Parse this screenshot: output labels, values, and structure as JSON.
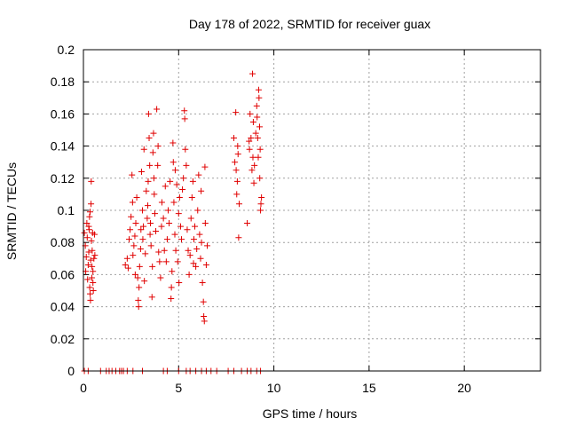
{
  "chart_data": {
    "type": "scatter",
    "title": "Day 178 of 2022, SRMTID for receiver guax",
    "xlabel": "GPS time / hours",
    "ylabel": "SRMTID / TECUs",
    "xlim": [
      0,
      24
    ],
    "ylim": [
      0,
      0.2
    ],
    "xticks": [
      0,
      5,
      10,
      15,
      20
    ],
    "xtick_labels": [
      "0",
      "5",
      "10",
      "15",
      "20"
    ],
    "yticks": [
      0,
      0.02,
      0.04,
      0.06,
      0.08,
      0.1,
      0.12,
      0.14,
      0.16,
      0.18,
      0.2
    ],
    "ytick_labels": [
      "0",
      "0.02",
      "0.04",
      "0.06",
      "0.08",
      "0.1",
      "0.12",
      "0.14",
      "0.16",
      "0.18",
      "0.2"
    ],
    "grid": true,
    "marker": "+",
    "color": "#e00000",
    "series": [
      {
        "name": "SRMTID",
        "points": [
          [
            0.05,
            0.086
          ],
          [
            0.1,
            0.078
          ],
          [
            0.12,
            0.062
          ],
          [
            0.15,
            0.071
          ],
          [
            0.18,
            0.092
          ],
          [
            0.2,
            0.083
          ],
          [
            0.22,
            0.057
          ],
          [
            0.25,
            0.066
          ],
          [
            0.28,
            0.074
          ],
          [
            0.3,
            0.088
          ],
          [
            0.32,
            0.096
          ],
          [
            0.33,
            0.052
          ],
          [
            0.35,
            0.048
          ],
          [
            0.37,
            0.044
          ],
          [
            0.38,
            0.069
          ],
          [
            0.4,
            0.104
          ],
          [
            0.41,
            0.118
          ],
          [
            0.42,
            0.081
          ],
          [
            0.44,
            0.058
          ],
          [
            0.45,
            0.065
          ],
          [
            0.46,
            0.075
          ],
          [
            0.48,
            0.086
          ],
          [
            0.5,
            0.055
          ],
          [
            0.52,
            0.05
          ],
          [
            0.55,
            0.07
          ],
          [
            0.58,
            0.085
          ],
          [
            0.6,
            0.072
          ],
          [
            0.35,
            0.099
          ],
          [
            0.28,
            0.09
          ],
          [
            0.5,
            0.062
          ],
          [
            2.2,
            0.066
          ],
          [
            2.3,
            0.07
          ],
          [
            2.35,
            0.064
          ],
          [
            2.4,
            0.082
          ],
          [
            2.45,
            0.088
          ],
          [
            2.5,
            0.096
          ],
          [
            2.55,
            0.122
          ],
          [
            2.6,
            0.072
          ],
          [
            2.65,
            0.078
          ],
          [
            2.7,
            0.084
          ],
          [
            2.72,
            0.06
          ],
          [
            2.75,
            0.092
          ],
          [
            2.8,
            0.108
          ],
          [
            2.85,
            0.058
          ],
          [
            2.88,
            0.044
          ],
          [
            2.9,
            0.04
          ],
          [
            2.92,
            0.052
          ],
          [
            2.95,
            0.065
          ],
          [
            3.0,
            0.076
          ],
          [
            3.02,
            0.088
          ],
          [
            3.05,
            0.124
          ],
          [
            3.1,
            0.1
          ],
          [
            3.12,
            0.082
          ],
          [
            3.15,
            0.09
          ],
          [
            3.2,
            0.056
          ],
          [
            3.25,
            0.073
          ],
          [
            3.3,
            0.112
          ],
          [
            3.35,
            0.095
          ],
          [
            3.38,
            0.103
          ],
          [
            3.4,
            0.118
          ],
          [
            3.42,
            0.16
          ],
          [
            3.45,
            0.145
          ],
          [
            3.48,
            0.128
          ],
          [
            3.5,
            0.085
          ],
          [
            3.52,
            0.092
          ],
          [
            3.55,
            0.078
          ],
          [
            3.6,
            0.046
          ],
          [
            3.62,
            0.065
          ],
          [
            3.65,
            0.136
          ],
          [
            3.7,
            0.12
          ],
          [
            3.72,
            0.11
          ],
          [
            3.75,
            0.098
          ],
          [
            3.8,
            0.087
          ],
          [
            3.85,
            0.163
          ],
          [
            3.9,
            0.128
          ],
          [
            3.92,
            0.14
          ],
          [
            3.95,
            0.074
          ],
          [
            4.0,
            0.068
          ],
          [
            4.05,
            0.058
          ],
          [
            4.1,
            0.09
          ],
          [
            4.2,
            0.095
          ],
          [
            4.25,
            0.075
          ],
          [
            4.3,
            0.115
          ],
          [
            4.35,
            0.068
          ],
          [
            4.4,
            0.082
          ],
          [
            4.45,
            0.1
          ],
          [
            4.5,
            0.092
          ],
          [
            4.55,
            0.118
          ],
          [
            4.6,
            0.045
          ],
          [
            4.62,
            0.052
          ],
          [
            4.65,
            0.062
          ],
          [
            4.7,
            0.142
          ],
          [
            4.72,
            0.13
          ],
          [
            4.75,
            0.105
          ],
          [
            4.8,
            0.085
          ],
          [
            4.85,
            0.075
          ],
          [
            4.9,
            0.116
          ],
          [
            4.95,
            0.068
          ],
          [
            5.0,
            0.098
          ],
          [
            5.05,
            0.108
          ],
          [
            5.1,
            0.09
          ],
          [
            5.15,
            0.082
          ],
          [
            5.2,
            0.113
          ],
          [
            5.25,
            0.12
          ],
          [
            5.3,
            0.162
          ],
          [
            5.32,
            0.157
          ],
          [
            5.35,
            0.138
          ],
          [
            5.4,
            0.128
          ],
          [
            5.45,
            0.088
          ],
          [
            5.5,
            0.075
          ],
          [
            5.55,
            0.06
          ],
          [
            5.6,
            0.072
          ],
          [
            5.65,
            0.095
          ],
          [
            5.7,
            0.108
          ],
          [
            5.75,
            0.118
          ],
          [
            5.8,
            0.082
          ],
          [
            5.85,
            0.09
          ],
          [
            5.9,
            0.065
          ],
          [
            5.95,
            0.076
          ],
          [
            6.0,
            0.1
          ],
          [
            6.05,
            0.122
          ],
          [
            6.1,
            0.085
          ],
          [
            6.15,
            0.07
          ],
          [
            6.2,
            0.08
          ],
          [
            6.25,
            0.055
          ],
          [
            6.3,
            0.043
          ],
          [
            6.32,
            0.034
          ],
          [
            6.35,
            0.031
          ],
          [
            6.38,
            0.127
          ],
          [
            6.4,
            0.092
          ],
          [
            6.45,
            0.066
          ],
          [
            6.5,
            0.078
          ],
          [
            5.02,
            0.055
          ],
          [
            4.82,
            0.125
          ],
          [
            3.18,
            0.138
          ],
          [
            2.58,
            0.105
          ],
          [
            3.68,
            0.148
          ],
          [
            4.12,
            0.105
          ],
          [
            5.78,
            0.067
          ],
          [
            6.18,
            0.112
          ],
          [
            7.9,
            0.145
          ],
          [
            7.95,
            0.13
          ],
          [
            8.0,
            0.161
          ],
          [
            8.02,
            0.125
          ],
          [
            8.05,
            0.11
          ],
          [
            8.08,
            0.118
          ],
          [
            8.1,
            0.14
          ],
          [
            8.12,
            0.135
          ],
          [
            8.15,
            0.083
          ],
          [
            8.18,
            0.104
          ],
          [
            8.7,
            0.143
          ],
          [
            8.75,
            0.16
          ],
          [
            8.8,
            0.145
          ],
          [
            8.85,
            0.125
          ],
          [
            8.88,
            0.185
          ],
          [
            8.9,
            0.133
          ],
          [
            8.92,
            0.155
          ],
          [
            8.95,
            0.117
          ],
          [
            8.98,
            0.128
          ],
          [
            8.6,
            0.092
          ],
          [
            9.1,
            0.165
          ],
          [
            9.12,
            0.158
          ],
          [
            9.15,
            0.145
          ],
          [
            9.18,
            0.133
          ],
          [
            9.2,
            0.175
          ],
          [
            9.22,
            0.17
          ],
          [
            9.25,
            0.152
          ],
          [
            9.28,
            0.138
          ],
          [
            9.3,
            0.1
          ],
          [
            9.32,
            0.104
          ],
          [
            9.35,
            0.108
          ],
          [
            9.05,
            0.148
          ],
          [
            8.72,
            0.138
          ],
          [
            9.26,
            0.12
          ],
          [
            0.05,
            0
          ],
          [
            0.25,
            0
          ],
          [
            0.9,
            0
          ],
          [
            1.2,
            0
          ],
          [
            1.5,
            0
          ],
          [
            1.7,
            0
          ],
          [
            1.9,
            0
          ],
          [
            2.1,
            0
          ],
          [
            2.3,
            0
          ],
          [
            2.6,
            0
          ],
          [
            3.1,
            0
          ],
          [
            4.2,
            0
          ],
          [
            4.4,
            0
          ],
          [
            5.0,
            0
          ],
          [
            5.6,
            0
          ],
          [
            5.9,
            0
          ],
          [
            6.2,
            0
          ],
          [
            6.7,
            0
          ],
          [
            7.0,
            0
          ],
          [
            7.6,
            0
          ],
          [
            7.9,
            0
          ],
          [
            8.3,
            0
          ],
          [
            8.6,
            0
          ],
          [
            8.8,
            0
          ],
          [
            9.1,
            0
          ],
          [
            9.3,
            0
          ],
          [
            2.0,
            0
          ],
          [
            1.35,
            0
          ],
          [
            6.45,
            0
          ],
          [
            5.4,
            0
          ]
        ]
      }
    ]
  }
}
